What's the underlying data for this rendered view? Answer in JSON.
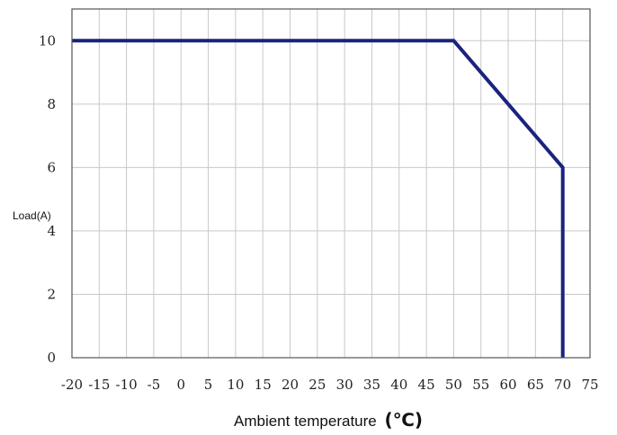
{
  "chart_data": {
    "type": "line",
    "title": "",
    "xlabel": "Ambient temperature",
    "xlabel_unit": "(℃)",
    "ylabel": "Load(A)",
    "xlim": [
      -20,
      75
    ],
    "ylim": [
      0,
      11
    ],
    "x_ticks": [
      -20,
      -15,
      -10,
      -5,
      0,
      5,
      10,
      15,
      20,
      25,
      30,
      35,
      40,
      45,
      50,
      55,
      60,
      65,
      70,
      75
    ],
    "y_ticks": [
      0,
      2,
      4,
      6,
      8,
      10
    ],
    "grid": true,
    "line_color": "#1a237e",
    "series": [
      {
        "x": [
          -20,
          50,
          70,
          70
        ],
        "y": [
          10,
          10,
          6,
          0
        ]
      }
    ]
  }
}
